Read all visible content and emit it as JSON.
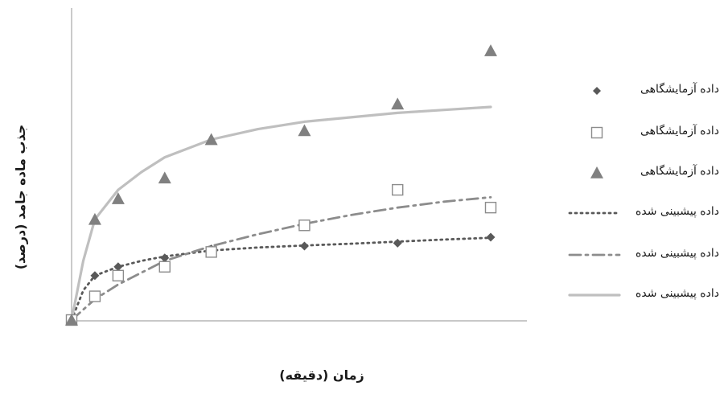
{
  "chart_data": {
    "type": "scatter",
    "title": "",
    "xlabel": "زمان (دقیقه)",
    "ylabel": "جذب ماده جامد (درصد)",
    "xlim": [
      0,
      9
    ],
    "ylim": [
      0,
      100
    ],
    "grid": false,
    "legend_position": "right",
    "series": [
      {
        "name": "داده آزمایشگاهی",
        "kind": "marker",
        "marker": "diamond",
        "color": "#595959",
        "x": [
          0,
          0.5,
          1,
          2,
          3,
          5,
          7,
          9
        ],
        "y": [
          0,
          15,
          18,
          21,
          24,
          25,
          26,
          28
        ]
      },
      {
        "name": "داده آزمایشگاهی",
        "kind": "marker",
        "marker": "square-open",
        "color": "#8c8c8c",
        "x": [
          0,
          0.5,
          1,
          2,
          3,
          5,
          7,
          9
        ],
        "y": [
          0,
          8,
          15,
          18,
          23,
          32,
          44,
          38
        ]
      },
      {
        "name": "داده آزمایشگاهی",
        "kind": "marker",
        "marker": "triangle",
        "color": "#808080",
        "x": [
          0,
          0.5,
          1,
          2,
          3,
          5,
          7,
          9
        ],
        "y": [
          0,
          34,
          41,
          48,
          61,
          64,
          73,
          91
        ]
      },
      {
        "name": "داده پیشبینی شده",
        "kind": "line",
        "dash": "dotted",
        "color": "#595959",
        "x": [
          0,
          0.25,
          0.5,
          1,
          1.5,
          2,
          3,
          4,
          5,
          6,
          7,
          8,
          9
        ],
        "y": [
          0,
          10,
          15,
          18,
          20,
          21.5,
          23.5,
          24.5,
          25.2,
          25.8,
          26.5,
          27.2,
          27.8
        ]
      },
      {
        "name": "داده پیشبینی شده",
        "kind": "line",
        "dash": "dashdot",
        "color": "#8c8c8c",
        "x": [
          0,
          0.5,
          1,
          1.5,
          2,
          3,
          4,
          5,
          6,
          7,
          8,
          9
        ],
        "y": [
          0,
          7,
          12,
          16,
          20,
          25,
          29,
          32.5,
          35.5,
          38,
          40,
          41.5
        ]
      },
      {
        "name": "داده پیشبینی شده",
        "kind": "line",
        "dash": "solid",
        "color": "#bfbfbf",
        "x": [
          0,
          0.25,
          0.5,
          1,
          1.5,
          2,
          3,
          4,
          5,
          6,
          7,
          8,
          9
        ],
        "y": [
          0,
          20,
          34,
          44,
          50,
          55,
          61,
          64.5,
          67,
          68.5,
          70,
          71,
          72
        ]
      }
    ]
  }
}
